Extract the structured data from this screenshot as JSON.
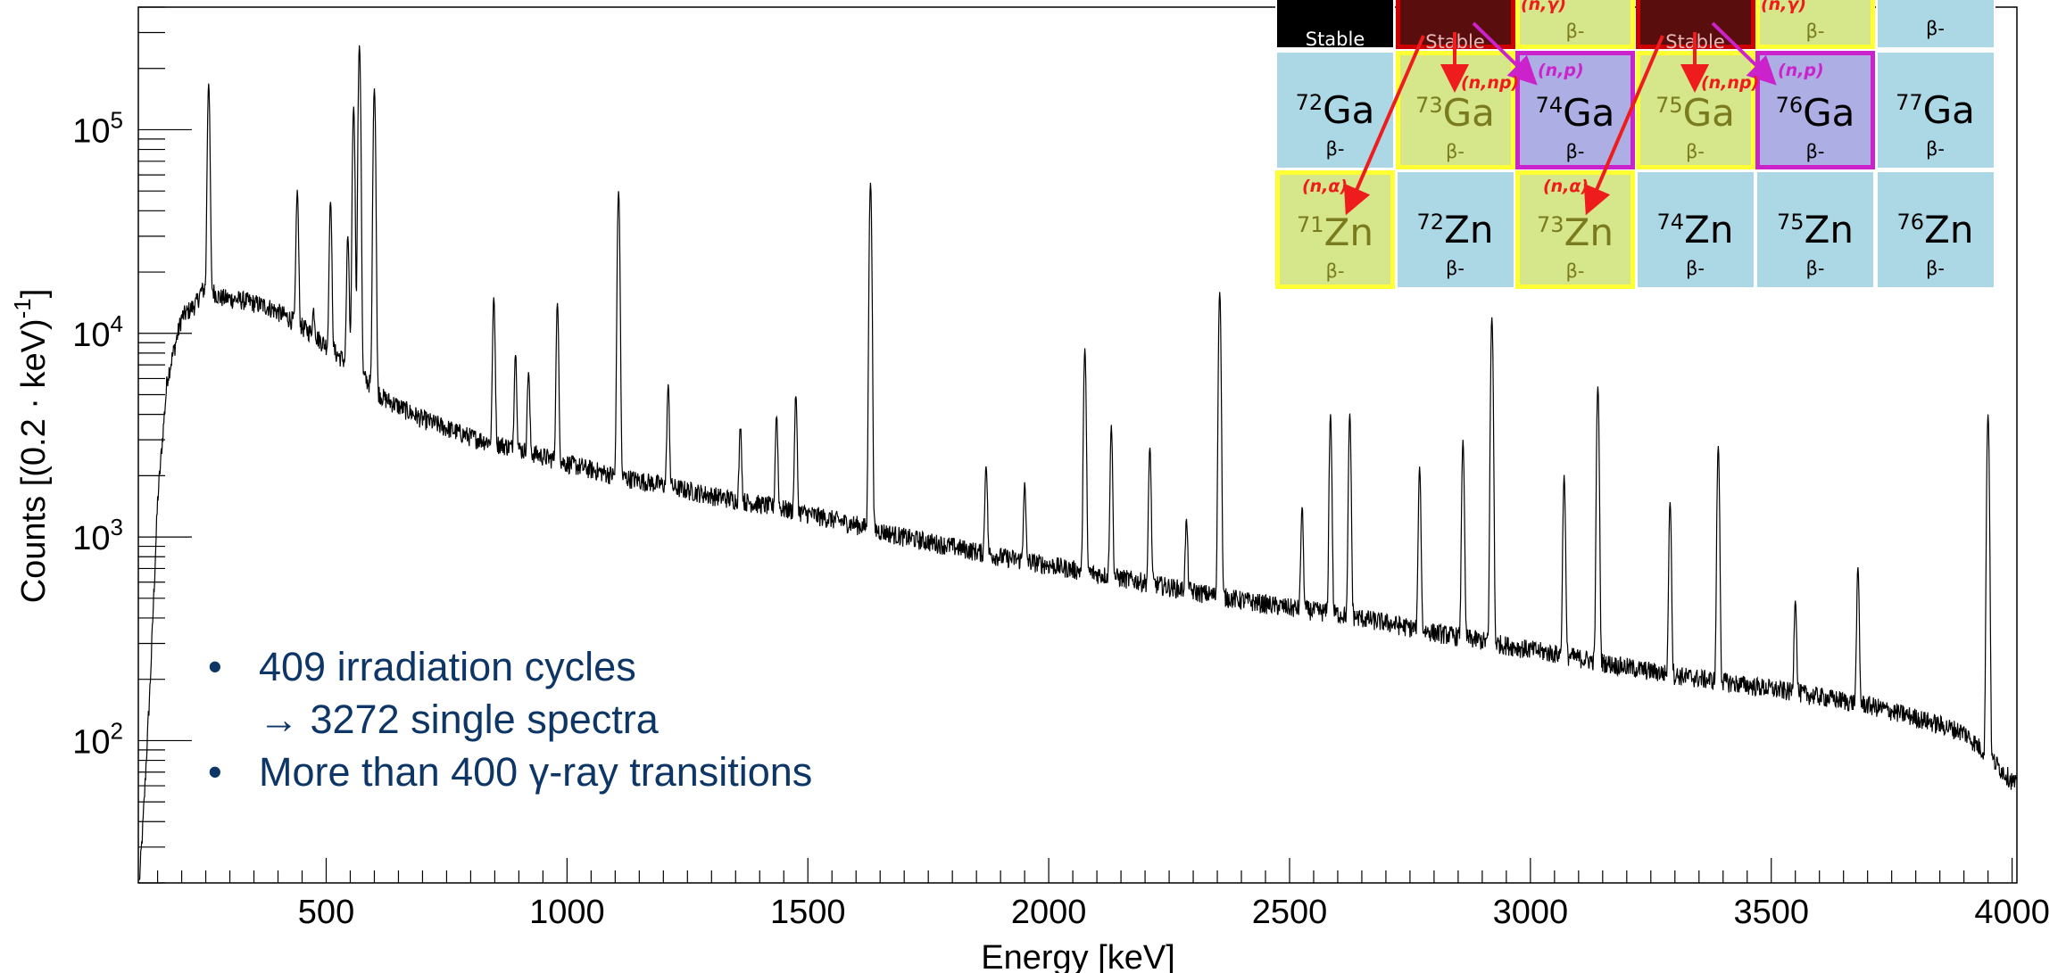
{
  "chart_data": {
    "type": "line",
    "xlabel": "Energy [keV]",
    "ylabel": "Counts [(0.2 · keV)-1]",
    "ylabel_parts": [
      "Counts [(0.2 · keV)",
      "-1",
      "]"
    ],
    "xlim": [
      110,
      4010
    ],
    "ylim": [
      20,
      400000
    ],
    "yscale": "log",
    "x_ticks": [
      500,
      1000,
      1500,
      2000,
      2500,
      3000,
      3500,
      4000
    ],
    "x_tick_labels": [
      "500",
      "1000",
      "1500",
      "2000",
      "2500",
      "3000",
      "3500",
      "4000"
    ],
    "y_ticks": [
      100,
      1000,
      10000,
      100000
    ],
    "y_tick_labels": [
      {
        "base": "10",
        "exp": "2"
      },
      {
        "base": "10",
        "exp": "3"
      },
      {
        "base": "10",
        "exp": "4"
      },
      {
        "base": "10",
        "exp": "5"
      }
    ],
    "grid": false,
    "continuum": [
      [
        112,
        20
      ],
      [
        120,
        40
      ],
      [
        135,
        200
      ],
      [
        150,
        1500
      ],
      [
        170,
        6000
      ],
      [
        200,
        12000
      ],
      [
        230,
        14000
      ],
      [
        240,
        16000
      ],
      [
        255,
        17000
      ],
      [
        280,
        15000
      ],
      [
        330,
        14500
      ],
      [
        380,
        13500
      ],
      [
        420,
        12000
      ],
      [
        470,
        10000
      ],
      [
        520,
        8000
      ],
      [
        580,
        6000
      ],
      [
        620,
        4800
      ],
      [
        700,
        3800
      ],
      [
        800,
        3100
      ],
      [
        900,
        2700
      ],
      [
        1000,
        2300
      ],
      [
        1100,
        2000
      ],
      [
        1200,
        1800
      ],
      [
        1300,
        1600
      ],
      [
        1400,
        1450
      ],
      [
        1500,
        1300
      ],
      [
        1600,
        1150
      ],
      [
        1700,
        1000
      ],
      [
        1800,
        900
      ],
      [
        1900,
        800
      ],
      [
        2000,
        730
      ],
      [
        2100,
        660
      ],
      [
        2200,
        600
      ],
      [
        2300,
        540
      ],
      [
        2400,
        490
      ],
      [
        2500,
        450
      ],
      [
        2600,
        420
      ],
      [
        2700,
        380
      ],
      [
        2800,
        340
      ],
      [
        2900,
        310
      ],
      [
        3000,
        280
      ],
      [
        3100,
        255
      ],
      [
        3200,
        230
      ],
      [
        3300,
        210
      ],
      [
        3400,
        195
      ],
      [
        3500,
        180
      ],
      [
        3600,
        165
      ],
      [
        3700,
        150
      ],
      [
        3800,
        130
      ],
      [
        3900,
        110
      ],
      [
        3960,
        80
      ],
      [
        4010,
        60
      ]
    ],
    "peaks": [
      [
        256,
        170000
      ],
      [
        440,
        50000
      ],
      [
        474,
        13000
      ],
      [
        509,
        45000
      ],
      [
        545,
        30000
      ],
      [
        557,
        130000
      ],
      [
        569,
        260000
      ],
      [
        600,
        160000
      ],
      [
        848,
        15000
      ],
      [
        893,
        8000
      ],
      [
        920,
        6500
      ],
      [
        980,
        14000
      ],
      [
        1107,
        50000
      ],
      [
        1210,
        5500
      ],
      [
        1360,
        3500
      ],
      [
        1435,
        4000
      ],
      [
        1475,
        5000
      ],
      [
        1630,
        55000
      ],
      [
        1870,
        2300
      ],
      [
        1950,
        1800
      ],
      [
        2075,
        8500
      ],
      [
        2130,
        3500
      ],
      [
        2210,
        2800
      ],
      [
        2286,
        1200
      ],
      [
        2355,
        16000
      ],
      [
        2526,
        1400
      ],
      [
        2585,
        4000
      ],
      [
        2625,
        4000
      ],
      [
        2770,
        2200
      ],
      [
        2860,
        3000
      ],
      [
        2920,
        12000
      ],
      [
        3070,
        2000
      ],
      [
        3140,
        5500
      ],
      [
        3290,
        1500
      ],
      [
        3390,
        2800
      ],
      [
        3550,
        500
      ],
      [
        3680,
        700
      ],
      [
        3950,
        4000
      ]
    ]
  },
  "notes": {
    "bullet": "•",
    "line1": "409 irradiation cycles",
    "line2": "→ 3272 single spectra",
    "line3": "More than 400 γ-ray transitions"
  },
  "nuclide_chart": {
    "rows": [
      [
        {
          "mass": "",
          "symbol": "",
          "decay": "Stable",
          "bg": "#000000",
          "fg": "#ffffff",
          "border": "#ffffff"
        },
        {
          "mass": "",
          "symbol": "",
          "decay": "Stable",
          "bg": "#5a0d0d",
          "fg": "#e7b8b8",
          "border": "#cc0000"
        },
        {
          "mass": "",
          "symbol": "",
          "decay": "β-",
          "bg": "#d5e78a",
          "fg": "#7a7a1e",
          "border": "#ffff33"
        },
        {
          "mass": "",
          "symbol": "",
          "decay": "Stable",
          "bg": "#5a0d0d",
          "fg": "#e7b8b8",
          "border": "#cc0000"
        },
        {
          "mass": "",
          "symbol": "",
          "decay": "β-",
          "bg": "#d5e78a",
          "fg": "#7a7a1e",
          "border": "#ffff33"
        },
        {
          "mass": "",
          "symbol": "",
          "decay": "β-",
          "bg": "#acd8e5",
          "fg": "#000000",
          "border": "#ffffff"
        }
      ],
      [
        {
          "mass": "72",
          "symbol": "Ga",
          "decay": "β-",
          "bg": "#acd8e5",
          "fg": "#000000",
          "border": "#ffffff"
        },
        {
          "mass": "73",
          "symbol": "Ga",
          "decay": "β-",
          "bg": "#d5e78a",
          "fg": "#7a7a1e",
          "border": "#ffff33"
        },
        {
          "mass": "74",
          "symbol": "Ga",
          "decay": "β-",
          "bg": "#adaee3",
          "fg": "#000000",
          "border": "#cc22cc"
        },
        {
          "mass": "75",
          "symbol": "Ga",
          "decay": "β-",
          "bg": "#d5e78a",
          "fg": "#7a7a1e",
          "border": "#ffff33"
        },
        {
          "mass": "76",
          "symbol": "Ga",
          "decay": "β-",
          "bg": "#adaee3",
          "fg": "#000000",
          "border": "#cc22cc"
        },
        {
          "mass": "77",
          "symbol": "Ga",
          "decay": "β-",
          "bg": "#acd8e5",
          "fg": "#000000",
          "border": "#ffffff"
        }
      ],
      [
        {
          "mass": "71",
          "symbol": "Zn",
          "decay": "β-",
          "bg": "#d5e78a",
          "fg": "#7a7a1e",
          "border": "#ffff33"
        },
        {
          "mass": "72",
          "symbol": "Zn",
          "decay": "β-",
          "bg": "#acd8e5",
          "fg": "#000000",
          "border": "#ffffff"
        },
        {
          "mass": "73",
          "symbol": "Zn",
          "decay": "β-",
          "bg": "#d5e78a",
          "fg": "#7a7a1e",
          "border": "#ffff33"
        },
        {
          "mass": "74",
          "symbol": "Zn",
          "decay": "β-",
          "bg": "#acd8e5",
          "fg": "#000000",
          "border": "#ffffff"
        },
        {
          "mass": "75",
          "symbol": "Zn",
          "decay": "β-",
          "bg": "#acd8e5",
          "fg": "#000000",
          "border": "#ffffff"
        },
        {
          "mass": "76",
          "symbol": "Zn",
          "decay": "β-",
          "bg": "#acd8e5",
          "fg": "#000000",
          "border": "#ffffff"
        }
      ]
    ],
    "reactions": {
      "n_gamma": "(n,γ)",
      "n_np": "(n,np)",
      "n_p": "(n,p)",
      "n_alpha": "(n,α)"
    },
    "colors": {
      "red_arrow": "#ee1c1c",
      "magenta_arrow": "#cc22cc"
    }
  }
}
